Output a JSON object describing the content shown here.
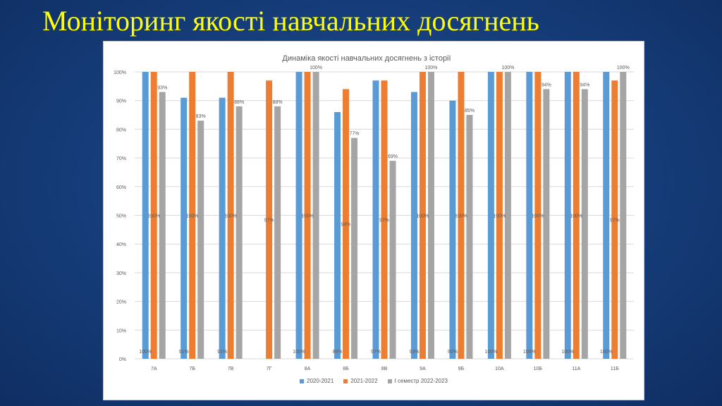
{
  "slide": {
    "title": "Моніторинг якості навчальних досягнень"
  },
  "colors": {
    "series": [
      "#5b9bd5",
      "#ed7d31",
      "#a5a5a5"
    ],
    "grid": "#d9d9d9",
    "text": "#595959"
  },
  "chart_data": {
    "type": "bar",
    "title": "Динаміка якості навчальних досягнень з історії",
    "xlabel": "",
    "ylabel": "",
    "ylim": [
      0,
      100
    ],
    "yticks": [
      "0%",
      "10%",
      "20%",
      "30%",
      "40%",
      "50%",
      "60%",
      "70%",
      "80%",
      "90%",
      "100%"
    ],
    "grid": true,
    "legend_position": "bottom",
    "categories": [
      "7А",
      "7Б",
      "7В",
      "7Г",
      "8А",
      "8Б",
      "8В",
      "9А",
      "9Б",
      "10А",
      "10Б",
      "11А",
      "11Б"
    ],
    "series": [
      {
        "name": "2020-2021",
        "values": [
          100,
          91,
          91,
          null,
          100,
          86,
          97,
          93,
          90,
          100,
          100,
          100,
          100
        ],
        "labels": [
          "100%",
          "91%",
          "91%",
          "",
          "100%",
          "86%",
          "97%",
          "93%",
          "90%",
          "100%",
          "100%",
          "100%",
          "100%"
        ]
      },
      {
        "name": "2021-2022",
        "values": [
          100,
          100,
          100,
          97,
          100,
          94,
          97,
          100,
          100,
          100,
          100,
          100,
          97
        ],
        "labels": [
          "100%",
          "100%",
          "100%",
          "97%",
          "100%",
          "94%",
          "97%",
          "100%",
          "100%",
          "100%",
          "100%",
          "100%",
          "97%"
        ]
      },
      {
        "name": "І семестр 2022-2023",
        "values": [
          93,
          83,
          88,
          88,
          100,
          77,
          69,
          100,
          85,
          100,
          94,
          94,
          100
        ],
        "labels": [
          "93%",
          "83%",
          "88%",
          "88%",
          "100%",
          "77%",
          "69%",
          "100%",
          "85%",
          "100%",
          "94%",
          "94%",
          "100%"
        ]
      }
    ]
  }
}
